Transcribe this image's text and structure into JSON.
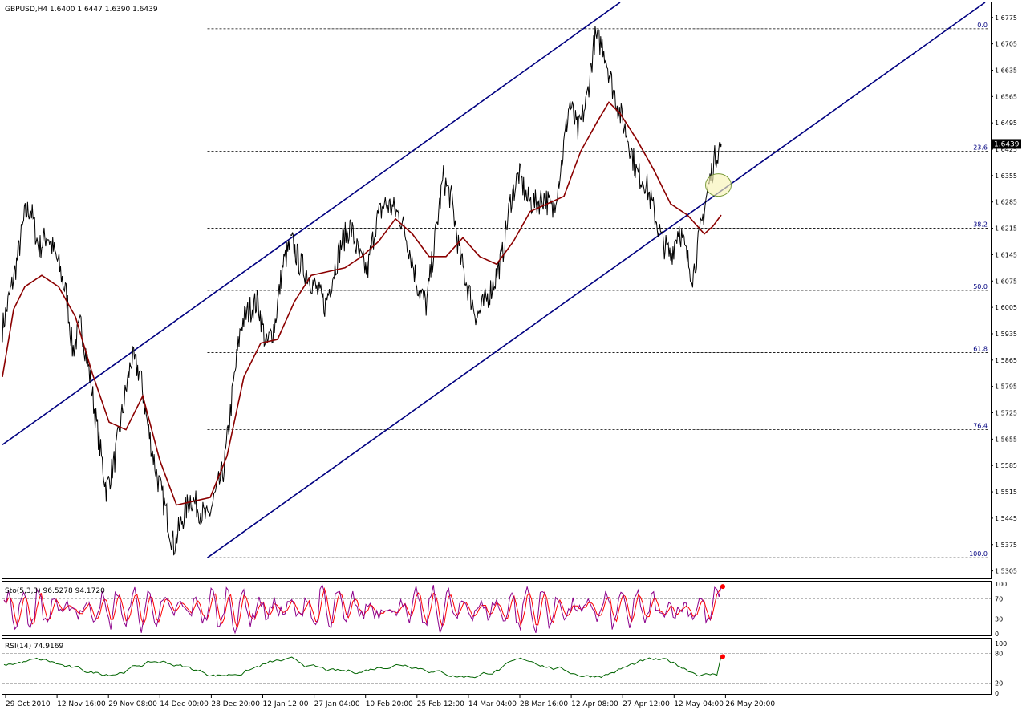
{
  "header": {
    "symbol_line": "GBPUSD,H4  1.6400 1.6447 1.6390 1.6439"
  },
  "price_tag": "1.6439",
  "colors": {
    "candles": "#000000",
    "ma": "#8b0000",
    "channel": "#000080",
    "fib": "#000000",
    "fib_label": "#000080",
    "stoch_main": "#8b008b",
    "stoch_signal": "#ff0000",
    "rsi": "#006400",
    "marker": "#ff0000",
    "circle_fill": "#f7f3b5",
    "circle_stroke": "#7a9a3a"
  },
  "chart_data": {
    "type": "line",
    "title": "GBPUSD,H4",
    "ohlc_last": {
      "open": 1.64,
      "high": 1.6447,
      "low": 1.639,
      "close": 1.6439
    },
    "ylim": [
      1.5285,
      1.6815
    ],
    "y_ticks": [
      "1.6775",
      "1.6705",
      "1.6635",
      "1.6565",
      "1.6495",
      "1.6425",
      "1.6355",
      "1.6285",
      "1.6215",
      "1.6145",
      "1.6075",
      "1.6005",
      "1.5935",
      "1.5865",
      "1.5795",
      "1.5725",
      "1.5655",
      "1.5585",
      "1.5515",
      "1.5445",
      "1.5375",
      "1.5305"
    ],
    "x_ticks": [
      "29 Oct 2010",
      "12 Nov 16:00",
      "29 Nov 08:00",
      "14 Dec 00:00",
      "28 Dec 20:00",
      "12 Jan 12:00",
      "27 Jan 04:00",
      "10 Feb 20:00",
      "25 Feb 12:00",
      "14 Mar 04:00",
      "28 Mar 16:00",
      "12 Apr 08:00",
      "27 Apr 12:00",
      "12 May 04:00",
      "26 May 20:00"
    ],
    "price_path": [
      {
        "x": 0,
        "y": 1.595
      },
      {
        "x": 3,
        "y": 1.605
      },
      {
        "x": 5,
        "y": 1.612
      },
      {
        "x": 8,
        "y": 1.625
      },
      {
        "x": 10,
        "y": 1.627
      },
      {
        "x": 13,
        "y": 1.616
      },
      {
        "x": 16,
        "y": 1.62
      },
      {
        "x": 20,
        "y": 1.612
      },
      {
        "x": 23,
        "y": 1.603
      },
      {
        "x": 25,
        "y": 1.589
      },
      {
        "x": 28,
        "y": 1.596
      },
      {
        "x": 31,
        "y": 1.583
      },
      {
        "x": 34,
        "y": 1.567
      },
      {
        "x": 37,
        "y": 1.552
      },
      {
        "x": 40,
        "y": 1.56
      },
      {
        "x": 43,
        "y": 1.574
      },
      {
        "x": 46,
        "y": 1.587
      },
      {
        "x": 49,
        "y": 1.583
      },
      {
        "x": 52,
        "y": 1.568
      },
      {
        "x": 55,
        "y": 1.556
      },
      {
        "x": 58,
        "y": 1.547
      },
      {
        "x": 61,
        "y": 1.537
      },
      {
        "x": 64,
        "y": 1.544
      },
      {
        "x": 67,
        "y": 1.55
      },
      {
        "x": 70,
        "y": 1.547
      },
      {
        "x": 73,
        "y": 1.544
      },
      {
        "x": 76,
        "y": 1.551
      },
      {
        "x": 79,
        "y": 1.558
      },
      {
        "x": 82,
        "y": 1.578
      },
      {
        "x": 85,
        "y": 1.596
      },
      {
        "x": 88,
        "y": 1.6
      },
      {
        "x": 91,
        "y": 1.602
      },
      {
        "x": 94,
        "y": 1.59
      },
      {
        "x": 97,
        "y": 1.596
      },
      {
        "x": 100,
        "y": 1.612
      },
      {
        "x": 103,
        "y": 1.618
      },
      {
        "x": 106,
        "y": 1.612
      },
      {
        "x": 109,
        "y": 1.609
      },
      {
        "x": 112,
        "y": 1.605
      },
      {
        "x": 115,
        "y": 1.601
      },
      {
        "x": 118,
        "y": 1.61
      },
      {
        "x": 121,
        "y": 1.618
      },
      {
        "x": 124,
        "y": 1.622
      },
      {
        "x": 127,
        "y": 1.614
      },
      {
        "x": 130,
        "y": 1.61
      },
      {
        "x": 133,
        "y": 1.623
      },
      {
        "x": 136,
        "y": 1.628
      },
      {
        "x": 139,
        "y": 1.627
      },
      {
        "x": 142,
        "y": 1.624
      },
      {
        "x": 145,
        "y": 1.616
      },
      {
        "x": 148,
        "y": 1.606
      },
      {
        "x": 151,
        "y": 1.601
      },
      {
        "x": 154,
        "y": 1.618
      },
      {
        "x": 157,
        "y": 1.635
      },
      {
        "x": 160,
        "y": 1.629
      },
      {
        "x": 163,
        "y": 1.614
      },
      {
        "x": 166,
        "y": 1.605
      },
      {
        "x": 169,
        "y": 1.598
      },
      {
        "x": 172,
        "y": 1.602
      },
      {
        "x": 175,
        "y": 1.607
      },
      {
        "x": 178,
        "y": 1.614
      },
      {
        "x": 181,
        "y": 1.629
      },
      {
        "x": 184,
        "y": 1.636
      },
      {
        "x": 187,
        "y": 1.629
      },
      {
        "x": 190,
        "y": 1.628
      },
      {
        "x": 193,
        "y": 1.63
      },
      {
        "x": 196,
        "y": 1.626
      },
      {
        "x": 199,
        "y": 1.638
      },
      {
        "x": 202,
        "y": 1.655
      },
      {
        "x": 205,
        "y": 1.647
      },
      {
        "x": 208,
        "y": 1.655
      },
      {
        "x": 211,
        "y": 1.672
      },
      {
        "x": 214,
        "y": 1.67
      },
      {
        "x": 217,
        "y": 1.66
      },
      {
        "x": 220,
        "y": 1.652
      },
      {
        "x": 223,
        "y": 1.645
      },
      {
        "x": 226,
        "y": 1.636
      },
      {
        "x": 229,
        "y": 1.634
      },
      {
        "x": 232,
        "y": 1.626
      },
      {
        "x": 235,
        "y": 1.618
      },
      {
        "x": 238,
        "y": 1.614
      },
      {
        "x": 241,
        "y": 1.622
      },
      {
        "x": 244,
        "y": 1.613
      },
      {
        "x": 246,
        "y": 1.609
      },
      {
        "x": 248,
        "y": 1.618
      },
      {
        "x": 251,
        "y": 1.631
      },
      {
        "x": 254,
        "y": 1.641
      },
      {
        "x": 256,
        "y": 1.6439
      }
    ],
    "moving_average": [
      {
        "x": 0,
        "y": 1.582
      },
      {
        "x": 4,
        "y": 1.6
      },
      {
        "x": 8,
        "y": 1.606
      },
      {
        "x": 14,
        "y": 1.609
      },
      {
        "x": 20,
        "y": 1.606
      },
      {
        "x": 26,
        "y": 1.598
      },
      {
        "x": 32,
        "y": 1.583
      },
      {
        "x": 38,
        "y": 1.57
      },
      {
        "x": 44,
        "y": 1.568
      },
      {
        "x": 50,
        "y": 1.577
      },
      {
        "x": 56,
        "y": 1.56
      },
      {
        "x": 62,
        "y": 1.548
      },
      {
        "x": 68,
        "y": 1.549
      },
      {
        "x": 74,
        "y": 1.55
      },
      {
        "x": 80,
        "y": 1.561
      },
      {
        "x": 86,
        "y": 1.582
      },
      {
        "x": 92,
        "y": 1.591
      },
      {
        "x": 98,
        "y": 1.592
      },
      {
        "x": 104,
        "y": 1.602
      },
      {
        "x": 110,
        "y": 1.609
      },
      {
        "x": 116,
        "y": 1.61
      },
      {
        "x": 122,
        "y": 1.611
      },
      {
        "x": 128,
        "y": 1.614
      },
      {
        "x": 134,
        "y": 1.618
      },
      {
        "x": 140,
        "y": 1.624
      },
      {
        "x": 146,
        "y": 1.62
      },
      {
        "x": 152,
        "y": 1.614
      },
      {
        "x": 158,
        "y": 1.614
      },
      {
        "x": 164,
        "y": 1.619
      },
      {
        "x": 170,
        "y": 1.614
      },
      {
        "x": 176,
        "y": 1.612
      },
      {
        "x": 182,
        "y": 1.618
      },
      {
        "x": 188,
        "y": 1.626
      },
      {
        "x": 194,
        "y": 1.628
      },
      {
        "x": 200,
        "y": 1.63
      },
      {
        "x": 206,
        "y": 1.642
      },
      {
        "x": 212,
        "y": 1.65
      },
      {
        "x": 216,
        "y": 1.655
      },
      {
        "x": 220,
        "y": 1.652
      },
      {
        "x": 226,
        "y": 1.645
      },
      {
        "x": 232,
        "y": 1.637
      },
      {
        "x": 238,
        "y": 1.628
      },
      {
        "x": 244,
        "y": 1.625
      },
      {
        "x": 250,
        "y": 1.62
      },
      {
        "x": 253,
        "y": 1.622
      },
      {
        "x": 256,
        "y": 1.625
      }
    ],
    "channel_lines": [
      {
        "from": {
          "x": 0,
          "y": 1.564
        },
        "to": {
          "x": 220,
          "y": 1.6815
        }
      },
      {
        "from": {
          "x": 73,
          "y": 1.534
        },
        "to": {
          "x": 350,
          "y": 1.6815
        }
      }
    ],
    "fibonacci": [
      {
        "label": "0.0",
        "price": 1.6745
      },
      {
        "label": "23.6",
        "price": 1.642
      },
      {
        "label": "38.2",
        "price": 1.6215
      },
      {
        "label": "50.0",
        "price": 1.605
      },
      {
        "label": "61.8",
        "price": 1.5885
      },
      {
        "label": "76.4",
        "price": 1.568
      },
      {
        "label": "100.0",
        "price": 1.534
      }
    ],
    "fib_x_start": 73,
    "marked_point": {
      "x": 255,
      "y": 1.633
    },
    "last_x": 256,
    "x_max": 360,
    "stochastic": {
      "label": "Sto(5,3,3) 96.5278 94.1720",
      "main": 96.5278,
      "signal": 94.172,
      "levels": [
        100,
        70,
        30,
        0
      ],
      "ylim": [
        0,
        100
      ]
    },
    "rsi": {
      "label": "RSI(14) 74.9169",
      "value": 74.9169,
      "levels": [
        80,
        20
      ],
      "axis_labels": [
        "100",
        "80",
        "20",
        "0"
      ],
      "ylim": [
        0,
        100
      ]
    }
  }
}
